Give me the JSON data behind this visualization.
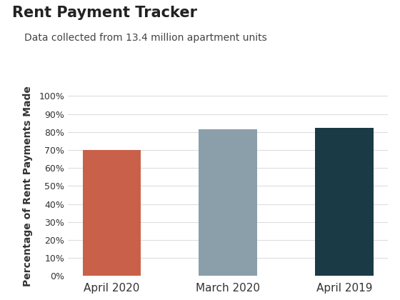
{
  "title": "Rent Payment Tracker",
  "subtitle": "Data collected from 13.4 million apartment units",
  "categories": [
    "April 2020",
    "March 2020",
    "April 2019"
  ],
  "values": [
    0.699,
    0.814,
    0.823
  ],
  "bar_colors": [
    "#c9604a",
    "#8a9faa",
    "#1a3a45"
  ],
  "ylabel": "Percentage of Rent Payments Made",
  "ylim": [
    0,
    1.0
  ],
  "yticks": [
    0,
    0.1,
    0.2,
    0.3,
    0.4,
    0.5,
    0.6,
    0.7,
    0.8,
    0.9,
    1.0
  ],
  "background_color": "#ffffff",
  "title_fontsize": 15,
  "subtitle_fontsize": 10,
  "tick_fontsize": 9,
  "ylabel_fontsize": 10,
  "xlabel_fontsize": 11
}
